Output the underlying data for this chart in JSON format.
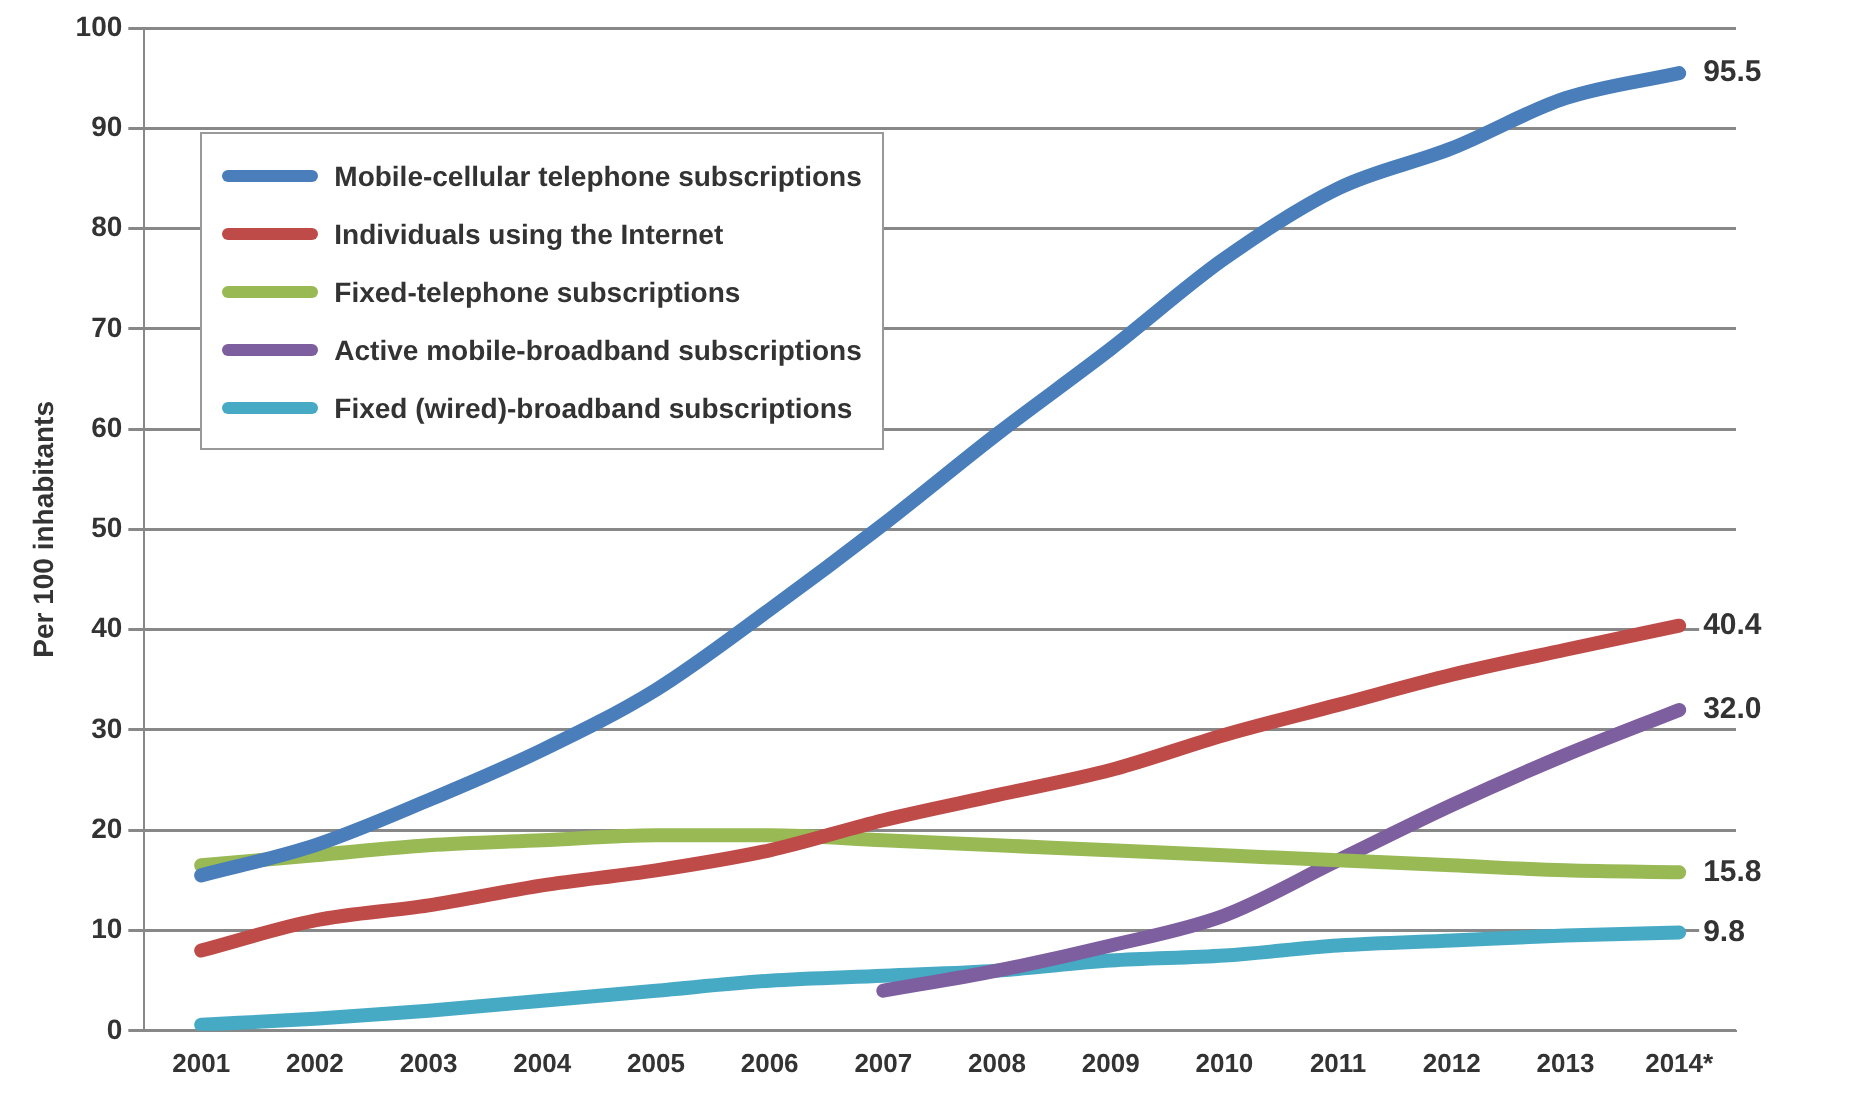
{
  "chart_data": {
    "type": "line",
    "ylabel": "Per 100 inhabitants",
    "categories": [
      "2001",
      "2002",
      "2003",
      "2004",
      "2005",
      "2006",
      "2007",
      "2008",
      "2009",
      "2010",
      "2011",
      "2012",
      "2013",
      "2014*"
    ],
    "ylim": [
      0,
      100
    ],
    "yticks": [
      0,
      10,
      20,
      30,
      40,
      50,
      60,
      70,
      80,
      90,
      100
    ],
    "grid": "y",
    "legend": "top left",
    "marker": "none",
    "line_style": "solid",
    "series": [
      {
        "name": "Mobile-cellular telephone subscriptions",
        "color": "#4a7ebb",
        "values": [
          15.5,
          18.5,
          23,
          28,
          34,
          42,
          50.5,
          59.5,
          68,
          77,
          84,
          88,
          93,
          95.5
        ],
        "value_labels": [
          null,
          null,
          null,
          null,
          null,
          null,
          null,
          null,
          null,
          null,
          null,
          null,
          null,
          "95.5"
        ]
      },
      {
        "name": "Individuals using the Internet",
        "color": "#be4b48",
        "values": [
          8,
          11,
          12.5,
          14.5,
          16,
          18,
          21,
          23.5,
          26,
          29.5,
          32.5,
          35.5,
          38,
          40.4
        ],
        "value_labels": [
          null,
          null,
          null,
          null,
          null,
          null,
          null,
          null,
          null,
          null,
          null,
          null,
          null,
          "40.4"
        ]
      },
      {
        "name": "Fixed-telephone subscriptions",
        "color": "#98b954",
        "values": [
          16.5,
          17.5,
          18.5,
          19,
          19.5,
          19.5,
          19,
          18.5,
          18,
          17.5,
          17,
          16.5,
          16,
          15.8
        ],
        "value_labels": [
          null,
          null,
          null,
          null,
          null,
          null,
          null,
          null,
          null,
          null,
          null,
          null,
          null,
          "15.8"
        ]
      },
      {
        "name": "Active mobile-broadband subscriptions",
        "color": "#7d5fa0",
        "values": [
          null,
          null,
          null,
          null,
          null,
          null,
          4,
          6,
          8.5,
          11.5,
          17,
          22.5,
          27.5,
          32
        ],
        "value_labels": [
          null,
          null,
          null,
          null,
          null,
          null,
          null,
          null,
          null,
          null,
          null,
          null,
          null,
          "32.0"
        ]
      },
      {
        "name": "Fixed (wired)-broadband subscriptions",
        "color": "#46aac5",
        "values": [
          0.6,
          1.2,
          2,
          3,
          4,
          5,
          5.5,
          6,
          7,
          7.5,
          8.5,
          9,
          9.5,
          9.8
        ],
        "value_labels": [
          null,
          null,
          null,
          null,
          null,
          null,
          null,
          null,
          null,
          null,
          null,
          null,
          null,
          "9.8"
        ]
      }
    ]
  }
}
